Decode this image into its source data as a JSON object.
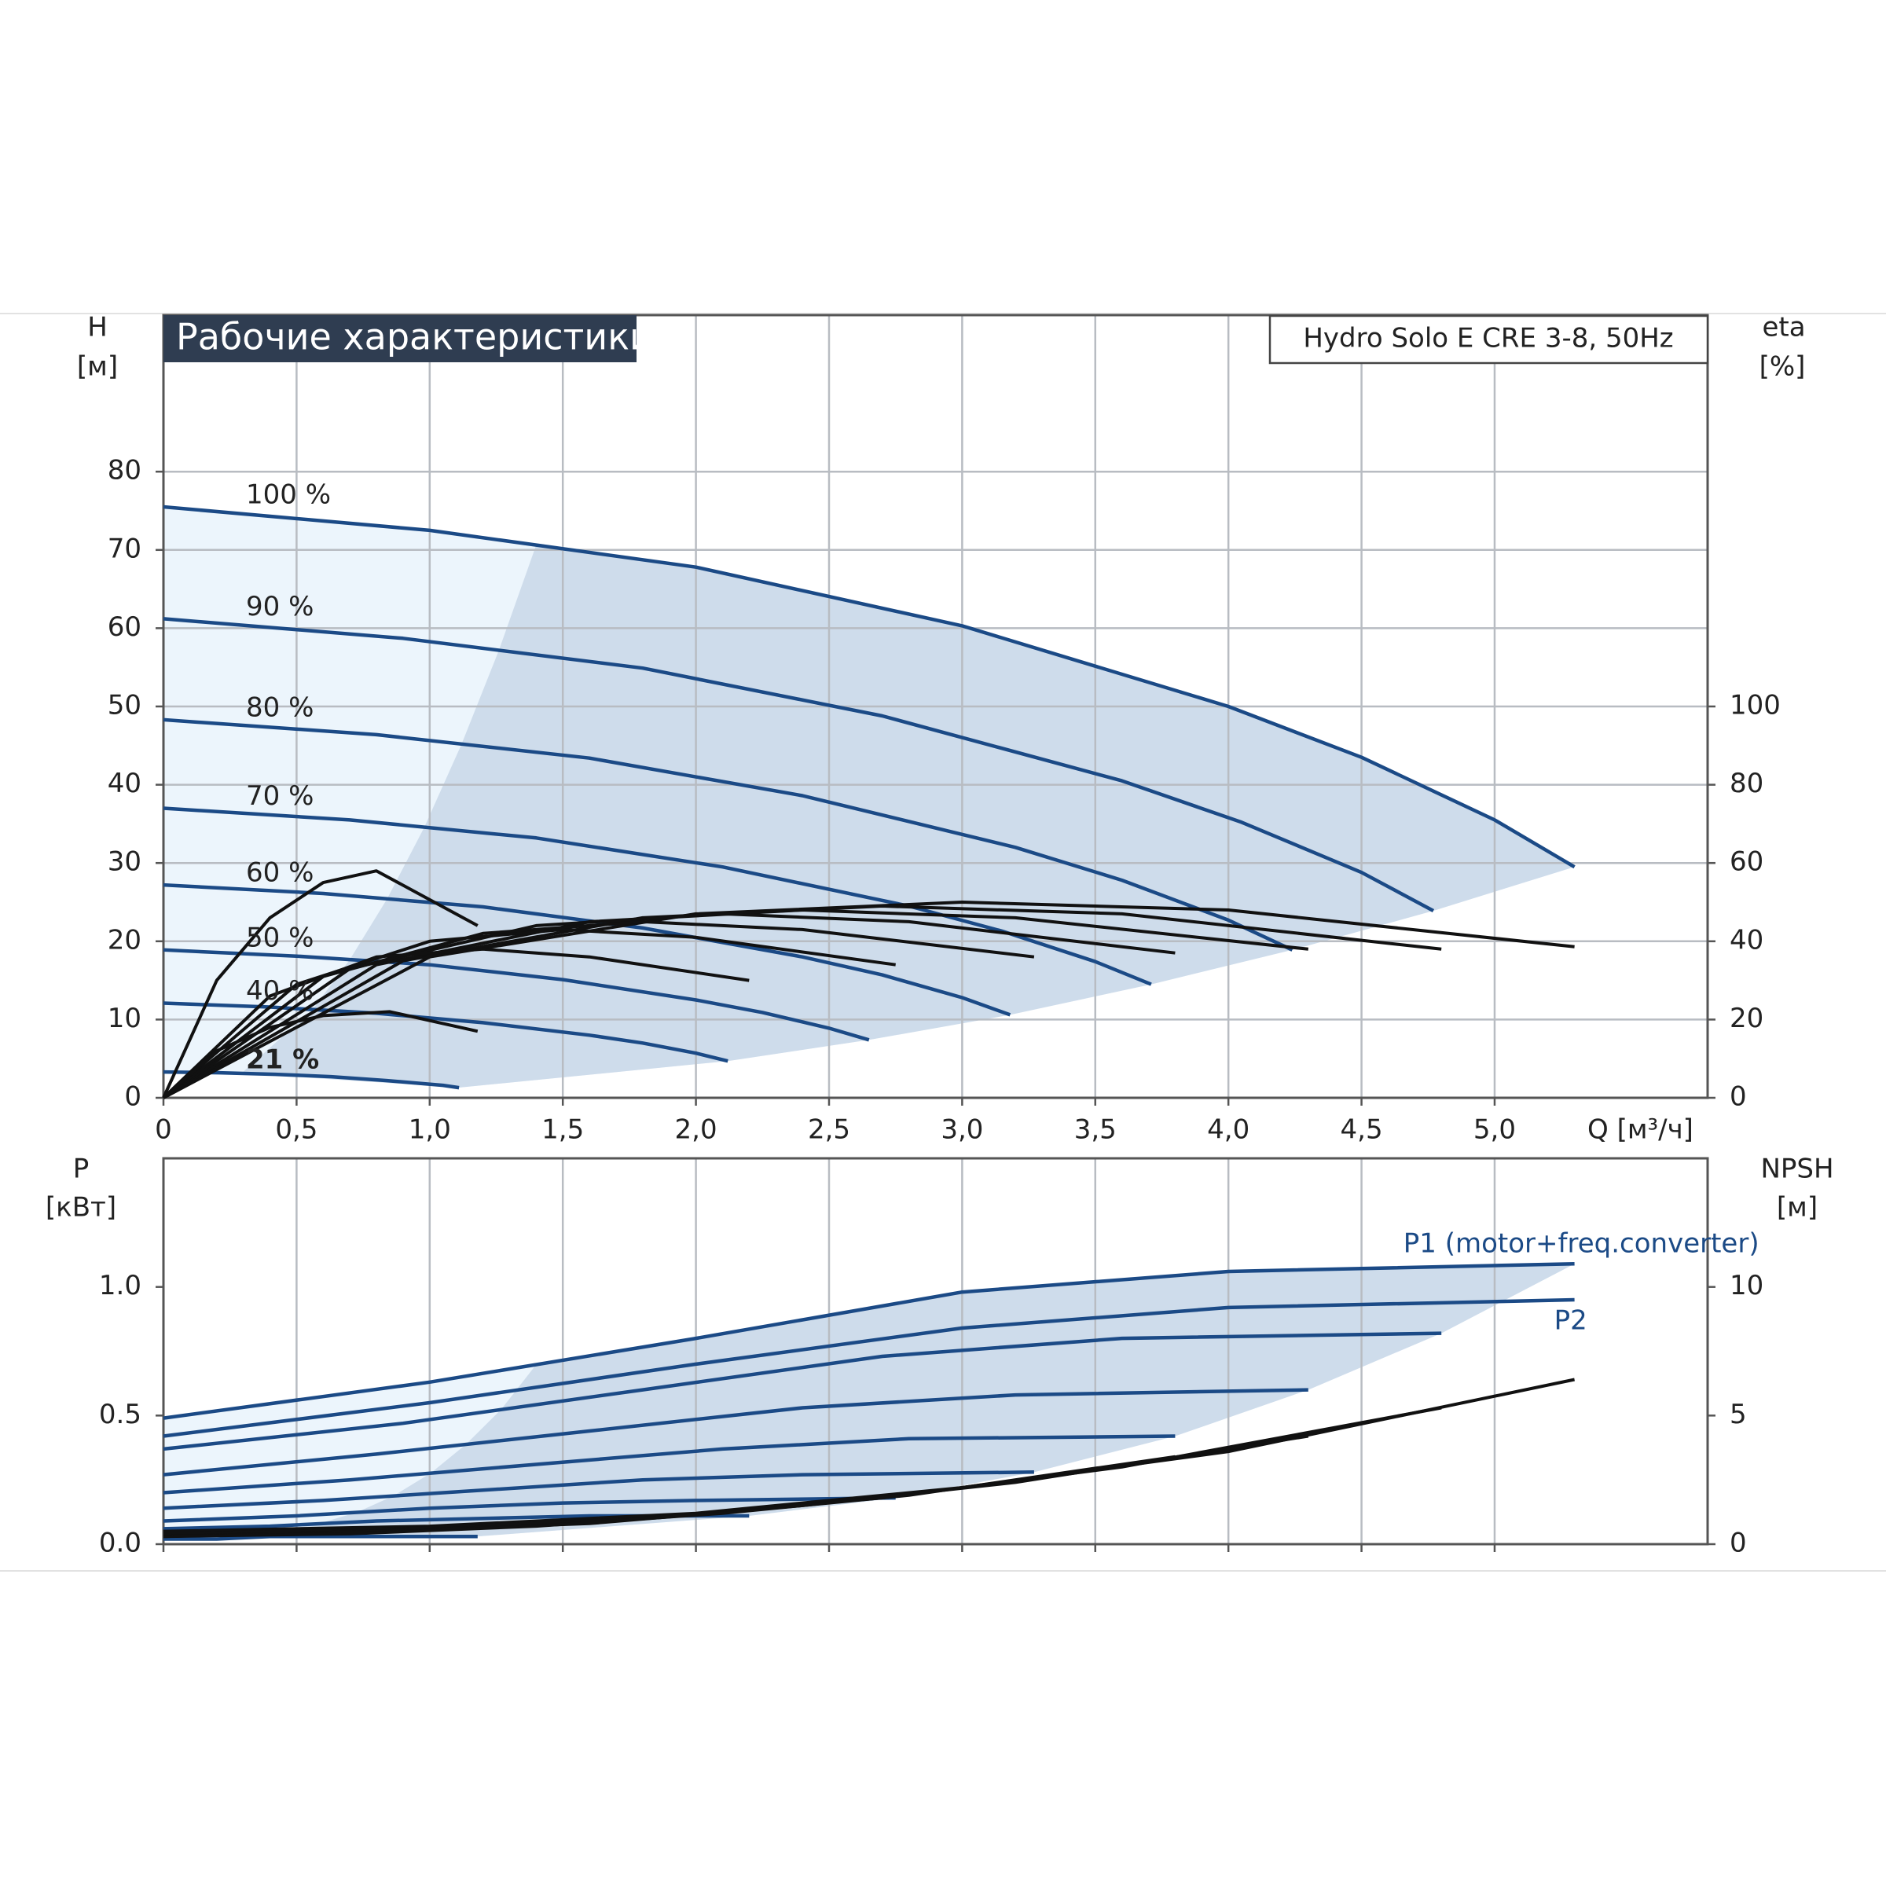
{
  "chart_data": [
    {
      "type": "line",
      "title": "Рабочие характеристики",
      "subtitle": "Hydro Solo E CRE 3-8, 50Hz",
      "y_label": "H",
      "y_unit": "[м]",
      "y2_label": "eta",
      "y2_unit": "[%]",
      "x_label": "Q [м³/ч]",
      "xlim": [
        0,
        5.8
      ],
      "ylim": [
        0,
        100
      ],
      "y2lim": [
        0,
        200
      ],
      "xticks": [
        0,
        {
          "value": 0.5,
          "label": "0,5"
        },
        {
          "value": 1,
          "label": "1,0"
        },
        {
          "value": 1.5,
          "label": "1,5"
        },
        {
          "value": 2,
          "label": "2,0"
        },
        {
          "value": 2.5,
          "label": "2,5"
        },
        {
          "value": 3,
          "label": "3,0"
        },
        {
          "value": 3.5,
          "label": "3,5"
        },
        {
          "value": 4,
          "label": "4,0"
        },
        {
          "value": 4.5,
          "label": "4,5"
        },
        {
          "value": 5,
          "label": "5,0"
        }
      ],
      "yticks": [
        0,
        10,
        20,
        30,
        40,
        50,
        60,
        70,
        80
      ],
      "y2ticks": [
        0,
        20,
        40,
        60,
        80,
        100
      ],
      "grid": true,
      "series": [
        {
          "name": "100 %",
          "color": "#1b4a86",
          "x": [
            0,
            1,
            2,
            3,
            4,
            4.5,
            5,
            5.3
          ],
          "values": [
            75.5,
            72.5,
            67.8,
            60.3,
            50,
            43.5,
            35.5,
            29.5
          ]
        },
        {
          "name": "90 %",
          "color": "#1b4a86",
          "x": [
            0,
            0.9,
            1.8,
            2.7,
            3.6,
            4.05,
            4.5,
            4.77
          ],
          "values": [
            61.2,
            58.7,
            54.9,
            48.8,
            40.5,
            35.2,
            28.8,
            23.9
          ]
        },
        {
          "name": "80 %",
          "color": "#1b4a86",
          "x": [
            0,
            0.8,
            1.6,
            2.4,
            3.2,
            3.6,
            4.0,
            4.24
          ],
          "values": [
            48.3,
            46.4,
            43.4,
            38.6,
            32,
            27.8,
            22.7,
            18.9
          ]
        },
        {
          "name": "70 %",
          "color": "#1b4a86",
          "x": [
            0,
            0.7,
            1.4,
            2.1,
            2.8,
            3.15,
            3.5,
            3.71
          ],
          "values": [
            37,
            35.5,
            33.2,
            29.5,
            24.5,
            21.3,
            17.4,
            14.5
          ]
        },
        {
          "name": "60 %",
          "color": "#1b4a86",
          "x": [
            0,
            0.6,
            1.2,
            1.8,
            2.4,
            2.7,
            3.0,
            3.18
          ],
          "values": [
            27.2,
            26.1,
            24.4,
            21.7,
            18,
            15.7,
            12.8,
            10.6
          ]
        },
        {
          "name": "50 %",
          "color": "#1b4a86",
          "x": [
            0,
            0.5,
            1,
            1.5,
            2,
            2.25,
            2.5,
            2.65
          ],
          "values": [
            18.9,
            18.1,
            17,
            15.1,
            12.5,
            10.9,
            8.9,
            7.4
          ]
        },
        {
          "name": "40 %",
          "color": "#1b4a86",
          "x": [
            0,
            0.4,
            0.8,
            1.2,
            1.6,
            1.8,
            2.0,
            2.12
          ],
          "values": [
            12.1,
            11.6,
            10.8,
            9.6,
            8,
            7,
            5.7,
            4.7
          ]
        },
        {
          "name": "21 %",
          "color": "#1b4a86",
          "x": [
            0,
            0.21,
            0.42,
            0.63,
            0.84,
            0.945,
            1.05,
            1.11
          ],
          "values": [
            3.3,
            3.2,
            3,
            2.7,
            2.2,
            1.9,
            1.6,
            1.3
          ]
        },
        {
          "axis": "y2",
          "color": "#111111",
          "x": [
            0,
            1,
            2,
            3,
            4,
            5.3
          ],
          "values": [
            0,
            36,
            47,
            50,
            48,
            38.6
          ]
        },
        {
          "axis": "y2",
          "color": "#111111",
          "x": [
            0,
            0.9,
            1.8,
            2.7,
            3.6,
            4.8
          ],
          "values": [
            0,
            35,
            46,
            49,
            47,
            38
          ]
        },
        {
          "axis": "y2",
          "color": "#111111",
          "x": [
            0,
            0.8,
            1.6,
            2.4,
            3.2,
            4.3
          ],
          "values": [
            0,
            34,
            45,
            48,
            46,
            38
          ]
        },
        {
          "axis": "y2",
          "color": "#111111",
          "x": [
            0,
            0.7,
            1.4,
            2.1,
            2.8,
            3.8
          ],
          "values": [
            0,
            33,
            44,
            47,
            45,
            37
          ]
        },
        {
          "axis": "y2",
          "color": "#111111",
          "x": [
            0,
            0.6,
            1.2,
            1.8,
            2.4,
            3.27
          ],
          "values": [
            0,
            31,
            42,
            45,
            43,
            36
          ]
        },
        {
          "axis": "y2",
          "color": "#111111",
          "x": [
            0,
            0.5,
            1,
            1.5,
            2,
            2.75
          ],
          "values": [
            0,
            29,
            40,
            43,
            41,
            34
          ]
        },
        {
          "axis": "y2",
          "color": "#111111",
          "x": [
            0,
            0.4,
            0.8,
            1.2,
            1.6,
            2.2
          ],
          "values": [
            0,
            26,
            36,
            38,
            36,
            30
          ]
        },
        {
          "axis": "y2",
          "color": "#111111",
          "x": [
            0,
            0.2,
            0.4,
            0.6,
            0.85,
            1.18
          ],
          "values": [
            0,
            12,
            18,
            21,
            22,
            17
          ]
        },
        {
          "axis": "y2",
          "color": "#111111",
          "x": [
            0,
            0.2,
            0.4,
            0.6,
            0.8,
            1.18
          ],
          "values": [
            0,
            30,
            46,
            55,
            58,
            44
          ]
        }
      ]
    },
    {
      "type": "line",
      "y_label": "P",
      "y_unit": "[кВт]",
      "y2_label": "NPSH",
      "y2_unit": "[м]",
      "xlim": [
        0,
        5.8
      ],
      "ylim": [
        0,
        1.5
      ],
      "y2lim": [
        0,
        15
      ],
      "yticks": [
        {
          "value": 0,
          "label": "0.0"
        },
        {
          "value": 0.5,
          "label": "0.5"
        },
        {
          "value": 1,
          "label": "1.0"
        }
      ],
      "y2ticks": [
        0,
        5,
        10
      ],
      "grid": false,
      "series": [
        {
          "name": "P1 (motor+freq.converter)",
          "color": "#1b4a86",
          "x": [
            0,
            1,
            2,
            3,
            4,
            5.3
          ],
          "values": [
            0.49,
            0.63,
            0.8,
            0.98,
            1.06,
            1.09
          ]
        },
        {
          "name": "P2",
          "color": "#1b4a86",
          "x": [
            0,
            1,
            2,
            3,
            4,
            5.3
          ],
          "values": [
            0.42,
            0.55,
            0.7,
            0.84,
            0.92,
            0.95
          ]
        },
        {
          "color": "#1b4a86",
          "x": [
            0,
            0.9,
            1.8,
            2.7,
            3.6,
            4.8
          ],
          "values": [
            0.37,
            0.47,
            0.6,
            0.73,
            0.8,
            0.82
          ]
        },
        {
          "color": "#1b4a86",
          "x": [
            0,
            0.8,
            1.6,
            2.4,
            3.2,
            4.3
          ],
          "values": [
            0.27,
            0.35,
            0.44,
            0.53,
            0.58,
            0.6
          ]
        },
        {
          "color": "#1b4a86",
          "x": [
            0,
            0.7,
            1.4,
            2.1,
            2.8,
            3.8
          ],
          "values": [
            0.2,
            0.25,
            0.31,
            0.37,
            0.41,
            0.42
          ]
        },
        {
          "color": "#1b4a86",
          "x": [
            0,
            0.6,
            1.2,
            1.8,
            2.4,
            3.27
          ],
          "values": [
            0.14,
            0.17,
            0.21,
            0.25,
            0.27,
            0.28
          ]
        },
        {
          "color": "#1b4a86",
          "x": [
            0,
            0.5,
            1,
            1.5,
            2,
            2.75
          ],
          "values": [
            0.09,
            0.11,
            0.14,
            0.16,
            0.17,
            0.18
          ]
        },
        {
          "color": "#1b4a86",
          "x": [
            0,
            0.4,
            0.8,
            1.2,
            1.6,
            2.2
          ],
          "values": [
            0.06,
            0.07,
            0.09,
            0.1,
            0.11,
            0.11
          ]
        },
        {
          "color": "#1b4a86",
          "x": [
            0,
            0.2,
            0.4,
            0.6,
            0.85,
            1.18
          ],
          "values": [
            0.02,
            0.02,
            0.03,
            0.03,
            0.03,
            0.03
          ]
        },
        {
          "axis": "y2",
          "color": "#111111",
          "x": [
            0,
            1,
            2,
            3,
            4,
            5.3
          ],
          "values": [
            0.5,
            0.7,
            1.2,
            2.2,
            3.6,
            6.4
          ]
        },
        {
          "axis": "y2",
          "color": "#111111",
          "x": [
            0,
            0.9,
            1.8,
            2.7,
            3.6,
            4.8
          ],
          "values": [
            0.4,
            0.6,
            1.0,
            1.8,
            3,
            5.3
          ]
        },
        {
          "axis": "y2",
          "color": "#111111",
          "x": [
            0,
            0.8,
            1.6,
            2.4,
            3.2,
            4.3
          ],
          "values": [
            0.3,
            0.5,
            0.8,
            1.5,
            2.4,
            4.2
          ]
        },
        {
          "axis": "y2",
          "color": "#111111",
          "x": [
            0,
            0.7,
            1.4,
            2.1,
            2.8,
            3.8
          ],
          "values": [
            0.3,
            0.4,
            0.7,
            1.2,
            1.9,
            3.4
          ]
        }
      ]
    }
  ]
}
